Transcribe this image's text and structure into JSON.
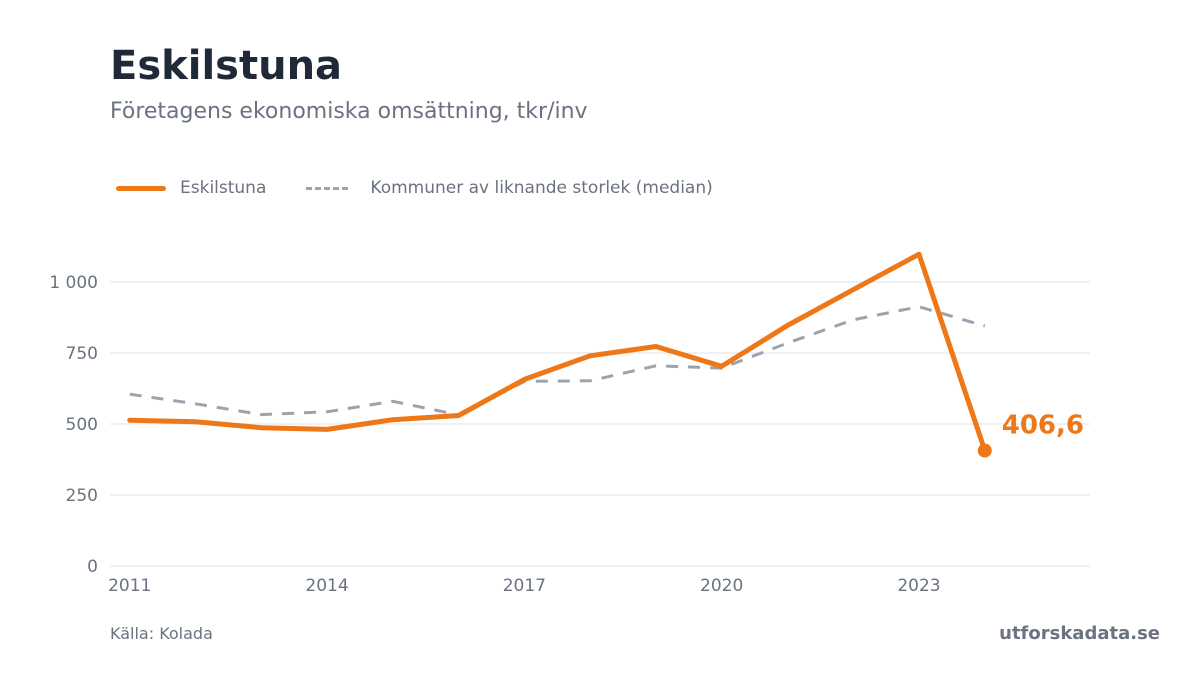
{
  "header": {
    "title": "Eskilstuna",
    "subtitle": "Företagens ekonomiska omsättning, tkr/inv"
  },
  "legend": {
    "primary_label": "Eskilstuna",
    "comparison_label": "Kommuner av liknande storlek (median)"
  },
  "footer": {
    "source": "Källa: Kolada",
    "brand": "utforskadata.se"
  },
  "colors": {
    "primary": "#ee7718",
    "comparison": "#9ca3af",
    "grid": "#e5e7eb",
    "tick_text": "#6b7280"
  },
  "chart_data": {
    "type": "line",
    "x": [
      2011,
      2012,
      2013,
      2014,
      2015,
      2016,
      2017,
      2018,
      2019,
      2020,
      2021,
      2022,
      2023,
      2024
    ],
    "series": [
      {
        "name": "Eskilstuna",
        "values": [
          513,
          508,
          487,
          481,
          515,
          530,
          657,
          740,
          773,
          703,
          847,
          973,
          1098,
          406.6
        ]
      },
      {
        "name": "Kommuner av liknande storlek (median)",
        "values": [
          605,
          571,
          533,
          543,
          580,
          532,
          650,
          652,
          705,
          697,
          785,
          867,
          913,
          845
        ]
      }
    ],
    "last_value_label": "406,6",
    "xticks": [
      2011,
      2014,
      2017,
      2020,
      2023
    ],
    "xtick_labels": [
      "2011",
      "2014",
      "2017",
      "2020",
      "2023"
    ],
    "yticks": [
      0,
      250,
      500,
      750,
      1000
    ],
    "ytick_labels": [
      "0",
      "250",
      "500",
      "750",
      "1 000"
    ],
    "xlim": [
      2010.7,
      2025.6
    ],
    "ylim": [
      0,
      1000
    ],
    "grid": true,
    "legend_position": "top-left"
  }
}
